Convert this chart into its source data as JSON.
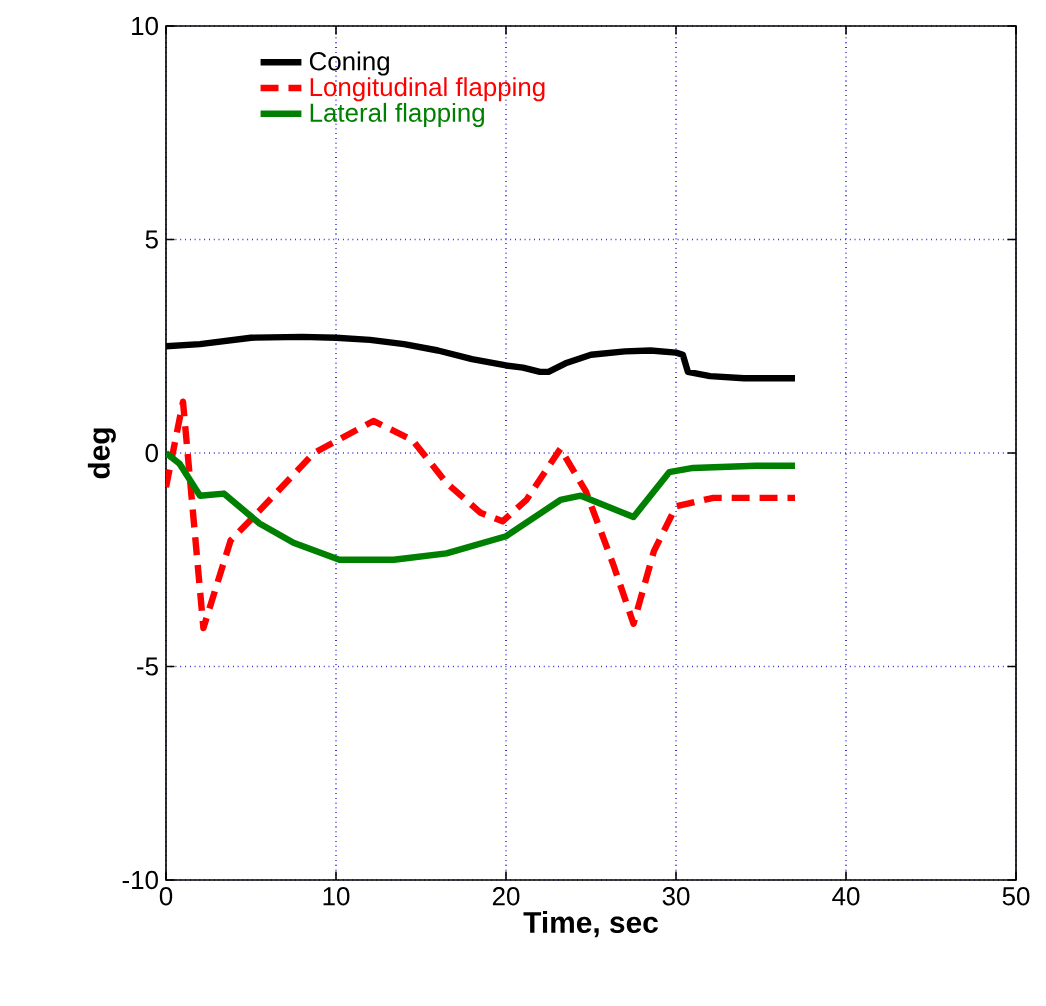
{
  "chart_data": {
    "type": "line",
    "xlabel": "Time, sec",
    "ylabel": "deg",
    "xlim": [
      0,
      50
    ],
    "ylim": [
      -10,
      10
    ],
    "xticks": [
      0,
      10,
      20,
      30,
      40,
      50
    ],
    "yticks": [
      -10,
      -5,
      0,
      5,
      10
    ],
    "grid": true,
    "legend": "top left",
    "line_style": "solid",
    "series": [
      {
        "name": "Coning",
        "color": "#000000",
        "x": [
          0,
          2,
          5,
          8,
          10,
          12,
          14,
          16,
          18,
          20,
          21,
          22,
          22.5,
          23.5,
          25,
          27,
          28.5,
          30,
          30.4,
          30.7,
          32,
          34,
          37
        ],
        "values": [
          2.5,
          2.55,
          2.7,
          2.72,
          2.7,
          2.65,
          2.55,
          2.4,
          2.2,
          2.05,
          2.0,
          1.9,
          1.9,
          2.1,
          2.3,
          2.38,
          2.4,
          2.35,
          2.3,
          1.9,
          1.8,
          1.75,
          1.75
        ]
      },
      {
        "name": "Longitudinal flapping",
        "color": "#ff0000",
        "line_style": "dashed",
        "x": [
          0,
          1.0,
          2.2,
          3.8,
          5.5,
          8.7,
          12.2,
          14.5,
          16.5,
          18.5,
          19.8,
          21.2,
          23.2,
          24.7,
          26.3,
          27.5,
          28.7,
          30,
          32.2,
          34.7,
          37
        ],
        "values": [
          -0.8,
          1.2,
          -4.1,
          -2.05,
          -1.35,
          0,
          0.75,
          0.3,
          -0.7,
          -1.4,
          -1.6,
          -1.1,
          0.1,
          -0.9,
          -2.6,
          -4.0,
          -2.3,
          -1.25,
          -1.05,
          -1.05,
          -1.05
        ]
      },
      {
        "name": "Lateral flapping",
        "color": "#008000",
        "x": [
          0,
          0.8,
          2,
          3.4,
          5.5,
          7.5,
          10.2,
          13.4,
          16.5,
          20,
          23.2,
          24.4,
          27.5,
          29.6,
          31,
          34.7,
          37
        ],
        "values": [
          0,
          -0.25,
          -1.0,
          -0.95,
          -1.65,
          -2.1,
          -2.5,
          -2.5,
          -2.35,
          -1.95,
          -1.1,
          -1.0,
          -1.5,
          -0.45,
          -0.35,
          -0.3,
          -0.3
        ]
      }
    ]
  }
}
